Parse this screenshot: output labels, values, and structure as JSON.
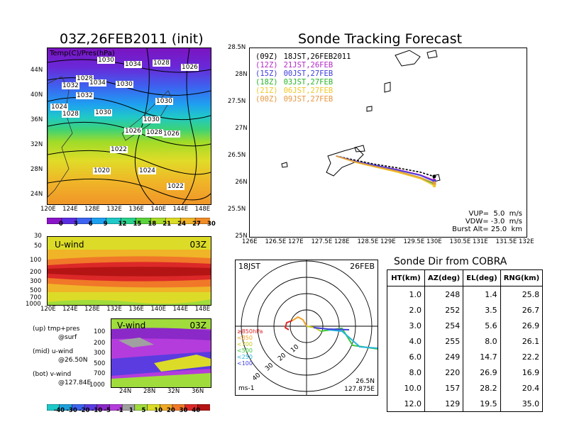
{
  "left": {
    "map_title": "03Z,26FEB2011",
    "map_title_suffix": "(init)",
    "map_label": "Temp(C)/Pres(hPa)",
    "lat_ticks": [
      "44N",
      "40N",
      "36N",
      "32N",
      "28N",
      "24N"
    ],
    "lon_ticks": [
      "120E",
      "124E",
      "128E",
      "132E",
      "136E",
      "140E",
      "144E",
      "148E"
    ],
    "isobars": [
      "1030",
      "1034",
      "1028",
      "1026",
      "1028",
      "1032",
      "1034",
      "1030",
      "1030",
      "1032",
      "1024",
      "1028",
      "1030",
      "1030",
      "1026",
      "1028",
      "1026",
      "1022",
      "1024",
      "1020",
      "1022"
    ],
    "temp_bar_labels": [
      "0",
      "3",
      "6",
      "9",
      "12",
      "15",
      "18",
      "21",
      "24",
      "27",
      "30"
    ],
    "temp_bar_colors": [
      "#8a14c8",
      "#5a2ee0",
      "#3c64f0",
      "#1ea0f0",
      "#20c8c8",
      "#28d28c",
      "#5ad23c",
      "#a8dc28",
      "#dcdc28",
      "#f0b428",
      "#f08c28"
    ],
    "uwind_label": "U-wind",
    "uwind_time": "03Z",
    "pres_ticks": [
      "30",
      "50",
      "100",
      "200",
      "300",
      "500",
      "700",
      "1000"
    ],
    "vwind_label": "V-wind",
    "vwind_time": "03Z",
    "vwind_pres_ticks": [
      "100",
      "200",
      "300",
      "500",
      "700",
      "1000"
    ],
    "vwind_lat_ticks": [
      "24N",
      "28N",
      "32N",
      "36N"
    ],
    "notes": [
      {
        "line1": "(up) tmp+pres",
        "line2": "@surf"
      },
      {
        "line1": "(mid) u-wind",
        "line2": "@26.50N"
      },
      {
        "line1": "(bot) v-wind",
        "line2": "@127.84E"
      }
    ],
    "wind_bar_labels": [
      "-40",
      "-30",
      "-20",
      "-10",
      "-5",
      "-1",
      "1",
      "5",
      "10",
      "20",
      "30",
      "40"
    ],
    "wind_bar_colors": [
      "#1ec8c8",
      "#1ea0dc",
      "#3c64f0",
      "#5a3ce0",
      "#8a28c8",
      "#b43cdc",
      "#a0a0a0",
      "#a0dc3c",
      "#dcdc28",
      "#f0aa28",
      "#f07828",
      "#dc2828",
      "#b41414"
    ]
  },
  "tracking": {
    "title": "Sonde Tracking Forecast",
    "lat_ticks": [
      "28.5N",
      "28N",
      "27.5N",
      "27N",
      "26.5N",
      "26N",
      "25.5N",
      "25N"
    ],
    "lon_ticks": [
      "126E",
      "126.5E",
      "127E",
      "127.5E",
      "128E",
      "128.5E",
      "129E",
      "129.5E",
      "130E",
      "130.5E",
      "131E",
      "131.5E",
      "132E"
    ],
    "legend": [
      {
        "z": "(09Z)",
        "t": "18JST,26FEB2011",
        "color": "#000000"
      },
      {
        "z": "(12Z)",
        "t": "21JST,26FEB",
        "color": "#b428c8"
      },
      {
        "z": "(15Z)",
        "t": "00JST,27FEB",
        "color": "#3c3cdc"
      },
      {
        "z": "(18Z)",
        "t": "03JST,27FEB",
        "color": "#28b428"
      },
      {
        "z": "(21Z)",
        "t": "06JST,27FEB",
        "color": "#f0c828"
      },
      {
        "z": "(00Z)",
        "t": "09JST,27FEB",
        "color": "#e89640"
      }
    ],
    "params": [
      "VUP=  5.0  m/s",
      "VDW= -3.0  m/s",
      "Burst Alt= 25.0  km"
    ]
  },
  "polar": {
    "time": "18JST",
    "date": "26FEB",
    "unit": "ms-1",
    "ring_labels": [
      "10",
      "20",
      "30",
      "40"
    ],
    "levels": [
      {
        "label": "≥850hPa",
        "color": "#dc2828"
      },
      {
        "label": "<850",
        "color": "#f0a028"
      },
      {
        "label": "<700",
        "color": "#c8c828"
      },
      {
        "label": "<500",
        "color": "#3cc83c"
      },
      {
        "label": "<250",
        "color": "#28b4dc"
      },
      {
        "label": "<100",
        "color": "#3c3cdc"
      }
    ],
    "location_lat": "26.5N",
    "location_lon": "127.875E"
  },
  "sonde_table": {
    "title": "Sonde Dir from COBRA",
    "headers": [
      "HT(km)",
      "AZ(deg)",
      "EL(deg)",
      "RNG(km)"
    ],
    "rows": [
      [
        "1.0",
        "248",
        "1.4",
        "25.8"
      ],
      [
        "2.0",
        "252",
        "3.5",
        "26.7"
      ],
      [
        "3.0",
        "254",
        "5.6",
        "26.9"
      ],
      [
        "4.0",
        "255",
        "8.0",
        "26.1"
      ],
      [
        "6.0",
        "249",
        "14.7",
        "22.2"
      ],
      [
        "8.0",
        "220",
        "26.9",
        "16.9"
      ],
      [
        "10.0",
        "157",
        "28.2",
        "20.4"
      ],
      [
        "12.0",
        "129",
        "19.5",
        "35.0"
      ]
    ]
  },
  "chart_data": [
    {
      "type": "table",
      "title": "Sonde Dir from COBRA",
      "columns": [
        "HT(km)",
        "AZ(deg)",
        "EL(deg)",
        "RNG(km)"
      ],
      "rows": [
        [
          1.0,
          248,
          1.4,
          25.8
        ],
        [
          2.0,
          252,
          3.5,
          26.7
        ],
        [
          3.0,
          254,
          5.6,
          26.9
        ],
        [
          4.0,
          255,
          8.0,
          26.1
        ],
        [
          6.0,
          249,
          14.7,
          22.2
        ],
        [
          8.0,
          220,
          26.9,
          16.9
        ],
        [
          10.0,
          157,
          28.2,
          20.4
        ],
        [
          12.0,
          129,
          19.5,
          35.0
        ]
      ]
    },
    {
      "type": "line",
      "title": "Sonde Tracking Forecast",
      "xlim": [
        126,
        132
      ],
      "ylim": [
        25,
        28.5
      ],
      "series": [
        {
          "name": "(09Z) 18JST,26FEB2011",
          "x": [
            127.87,
            128.3,
            128.7,
            129.2,
            129.7,
            130.0
          ],
          "y": [
            26.5,
            26.42,
            26.35,
            26.28,
            26.2,
            26.12
          ]
        },
        {
          "name": "(12Z) 21JST,26FEB",
          "x": [
            127.87,
            128.3,
            128.7,
            129.2,
            129.7,
            130.0
          ],
          "y": [
            26.5,
            26.4,
            26.33,
            26.25,
            26.15,
            26.05
          ]
        },
        {
          "name": "(15Z) 00JST,27FEB",
          "x": [
            127.87,
            128.3,
            128.7,
            129.2,
            129.7,
            130.0
          ],
          "y": [
            26.5,
            26.4,
            26.33,
            26.24,
            26.14,
            26.03
          ]
        },
        {
          "name": "(18Z) 03JST,27FEB",
          "x": [
            127.87,
            128.3,
            128.7,
            129.2,
            129.7,
            130.0
          ],
          "y": [
            26.5,
            26.39,
            26.31,
            26.22,
            26.1,
            25.98
          ]
        },
        {
          "name": "(21Z) 06JST,27FEB",
          "x": [
            127.87,
            128.3,
            128.7,
            129.2,
            129.7,
            130.0
          ],
          "y": [
            26.5,
            26.38,
            26.3,
            26.2,
            26.08,
            25.95
          ]
        },
        {
          "name": "(00Z) 09JST,27FEB",
          "x": [
            127.87,
            128.3,
            128.7,
            129.2,
            129.7,
            130.0
          ],
          "y": [
            26.5,
            26.39,
            26.31,
            26.22,
            26.1,
            26.0
          ]
        }
      ]
    }
  ]
}
